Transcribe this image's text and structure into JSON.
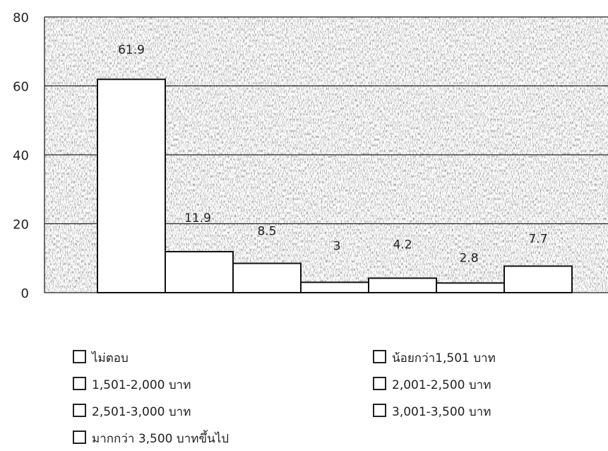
{
  "chart_data": {
    "type": "bar",
    "title": "",
    "xlabel": "",
    "ylabel": "",
    "ylim": [
      0,
      80
    ],
    "yticks": [
      "0",
      "20",
      "40",
      "60",
      "80"
    ],
    "grid": true,
    "legend_placement": "bottom",
    "colors": {
      "bar_fill": "#ffffff",
      "bar_edge": "#111111",
      "plot_texture": "#9a9a9a",
      "gridline": "#222222"
    },
    "categories": [
      "ไม่ตอบ",
      "น้อยกว่า1,501 บาท",
      "1,501-2,000 บาท",
      "2,001-2,500 บาท",
      "2,501-3,000 บาท",
      "3,001-3,500 บาท",
      "มากกว่า 3,500 บาทขึ้นไป"
    ],
    "values": [
      61.9,
      11.9,
      8.5,
      3,
      4.2,
      2.8,
      7.7
    ],
    "data_labels": [
      "61.9",
      "11.9",
      "8.5",
      "3",
      "4.2",
      "2.8",
      "7.7"
    ]
  }
}
